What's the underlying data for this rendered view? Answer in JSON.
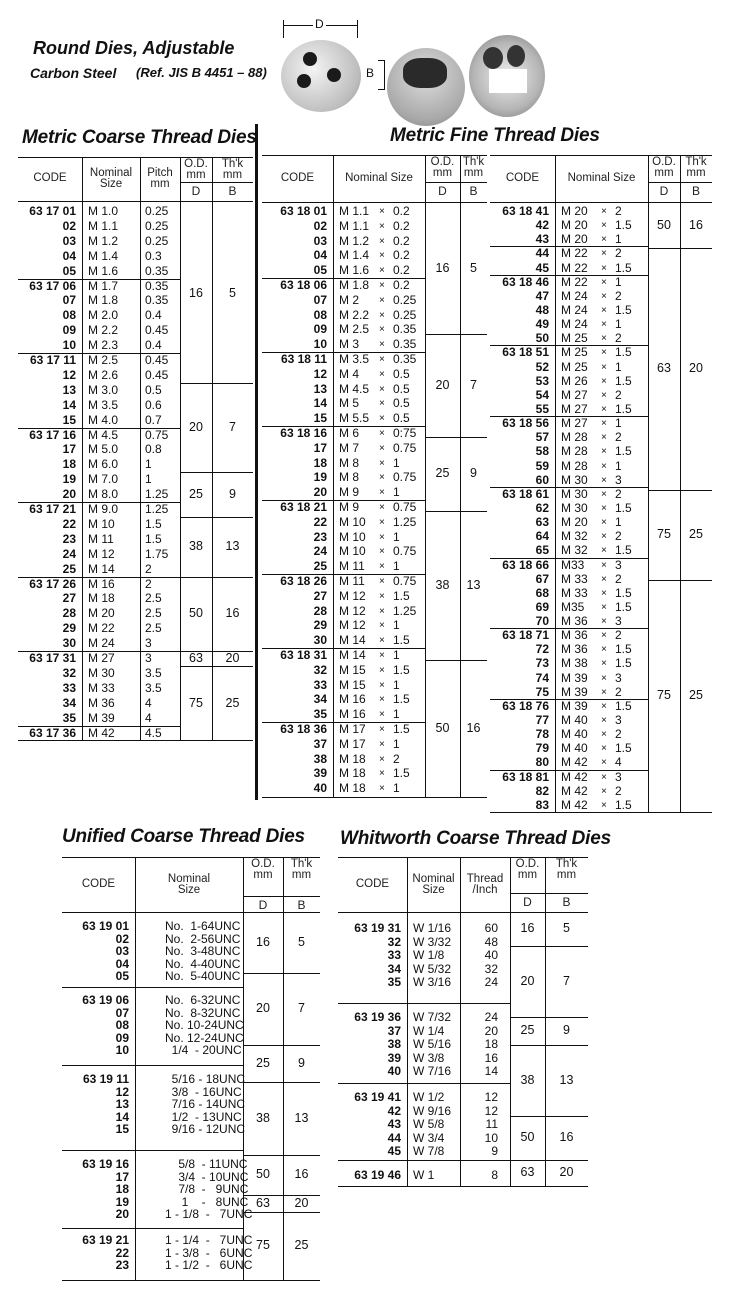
{
  "header": {
    "title": "Round Dies, Adjustable",
    "subtitle": "Carbon Steel",
    "reference": "(Ref. JIS B 4451 – 88)",
    "dimension_d": "D",
    "dimension_b": "B"
  },
  "tables": {
    "metric_coarse": {
      "title": "Metric Coarse Thread Dies",
      "columns": [
        "CODE",
        "Nominal\nSize",
        "Pitch\nmm",
        "O.D.\nmm",
        "Th'k\nmm"
      ],
      "sub_columns": [
        "D",
        "B"
      ],
      "groups": [
        [
          [
            "63 17 01",
            "M 1.0",
            "0.25"
          ],
          [
            "02",
            "M 1.1",
            "0.25"
          ],
          [
            "03",
            "M 1.2",
            "0.25"
          ],
          [
            "04",
            "M 1.4",
            "0.3"
          ],
          [
            "05",
            "M 1.6",
            "0.35"
          ]
        ],
        [
          [
            "63 17 06",
            "M 1.7",
            "0.35"
          ],
          [
            "07",
            "M 1.8",
            "0.35"
          ],
          [
            "08",
            "M 2.0",
            "0.4"
          ],
          [
            "09",
            "M 2.2",
            "0.45"
          ],
          [
            "10",
            "M 2.3",
            "0.4"
          ]
        ],
        [
          [
            "63 17 11",
            "M 2.5",
            "0.45"
          ],
          [
            "12",
            "M 2.6",
            "0.45"
          ],
          [
            "13",
            "M 3.0",
            "0.5"
          ],
          [
            "14",
            "M 3.5",
            "0.6"
          ],
          [
            "15",
            "M 4.0",
            "0.7"
          ]
        ],
        [
          [
            "63 17 16",
            "M 4.5",
            "0.75"
          ],
          [
            "17",
            "M 5.0",
            "0.8"
          ],
          [
            "18",
            "M 6.0",
            "1"
          ],
          [
            "19",
            "M 7.0",
            "1"
          ],
          [
            "20",
            "M 8.0",
            "1.25"
          ]
        ],
        [
          [
            "63 17 21",
            "M 9.0",
            "1.25"
          ],
          [
            "22",
            "M 10",
            "1.5"
          ],
          [
            "23",
            "M 11",
            "1.5"
          ],
          [
            "24",
            "M 12",
            "1.75"
          ],
          [
            "25",
            "M 14",
            "2"
          ]
        ],
        [
          [
            "63 17 26",
            "M 16",
            "2"
          ],
          [
            "27",
            "M 18",
            "2.5"
          ],
          [
            "28",
            "M 20",
            "2.5"
          ],
          [
            "29",
            "M 22",
            "2.5"
          ],
          [
            "30",
            "M 24",
            "3"
          ]
        ],
        [
          [
            "63 17 31",
            "M 27",
            "3"
          ],
          [
            "32",
            "M 30",
            "3.5"
          ],
          [
            "33",
            "M 33",
            "3.5"
          ],
          [
            "34",
            "M 36",
            "4"
          ],
          [
            "35",
            "M 39",
            "4"
          ]
        ],
        [
          [
            "63 17 36",
            "M 42",
            "4.5"
          ]
        ]
      ],
      "spans": [
        [
          "16",
          "5"
        ],
        [
          "20",
          "7"
        ],
        [
          "25",
          "9"
        ],
        [
          "38",
          "13"
        ],
        [
          "50",
          "16"
        ],
        [
          "63",
          "20"
        ],
        [
          "75",
          "25"
        ]
      ]
    },
    "metric_fine_left": {
      "title": "Metric Fine Thread Dies",
      "columns": [
        "CODE",
        "Nominal Size",
        "O.D.\nmm",
        "Th'k\nmm"
      ],
      "sub_columns": [
        "D",
        "B"
      ],
      "groups": [
        [
          [
            "63 18 01",
            "M 1.1 × 0.2"
          ],
          [
            "02",
            "M 1.1 × 0.2"
          ],
          [
            "03",
            "M 1.2 × 0.2"
          ],
          [
            "04",
            "M 1.4 × 0.2"
          ],
          [
            "05",
            "M 1.6 × 0.2"
          ]
        ],
        [
          [
            "63 18 06",
            "M 1.8 × 0.2"
          ],
          [
            "07",
            "M 2 × 0.25"
          ],
          [
            "08",
            "M 2.2 × 0.25"
          ],
          [
            "09",
            "M 2.5 × 0.35"
          ],
          [
            "10",
            "M 3 × 0.35"
          ]
        ],
        [
          [
            "63 18 11",
            "M 3.5 × 0.35"
          ],
          [
            "12",
            "M 4 × 0.5"
          ],
          [
            "13",
            "M 4.5 × 0.5"
          ],
          [
            "14",
            "M 5 × 0.5"
          ],
          [
            "15",
            "M 5.5 × 0.5"
          ]
        ],
        [
          [
            "63 18 16",
            "M 6 × 0:75"
          ],
          [
            "17",
            "M 7 × 0.75"
          ],
          [
            "18",
            "M 8 × 1"
          ],
          [
            "19",
            "M 8 × 0.75"
          ],
          [
            "20",
            "M 9 × 1"
          ]
        ],
        [
          [
            "63 18 21",
            "M 9 × 0.75"
          ],
          [
            "22",
            "M 10 × 1.25"
          ],
          [
            "23",
            "M 10 × 1"
          ],
          [
            "24",
            "M 10 × 0.75"
          ],
          [
            "25",
            "M 11 × 1"
          ]
        ],
        [
          [
            "63 18 26",
            "M 11 × 0.75"
          ],
          [
            "27",
            "M 12 × 1.5"
          ],
          [
            "28",
            "M 12 × 1.25"
          ],
          [
            "29",
            "M 12 × 1"
          ],
          [
            "30",
            "M 14 × 1.5"
          ]
        ],
        [
          [
            "63 18 31",
            "M 14 × 1"
          ],
          [
            "32",
            "M 15 × 1.5"
          ],
          [
            "33",
            "M 15 × 1"
          ],
          [
            "34",
            "M 16 × 1.5"
          ],
          [
            "35",
            "M 16 × 1"
          ]
        ],
        [
          [
            "63 18 36",
            "M 17 × 1.5"
          ],
          [
            "37",
            "M 17 × 1"
          ],
          [
            "38",
            "M 18 × 2"
          ],
          [
            "39",
            "M 18 × 1.5"
          ],
          [
            "40",
            "M 18 × 1"
          ]
        ]
      ],
      "spans": [
        [
          "16",
          "5"
        ],
        [
          "20",
          "7"
        ],
        [
          "25",
          "9"
        ],
        [
          "38",
          "13"
        ],
        [
          "50",
          "16"
        ]
      ]
    },
    "metric_fine_right": {
      "columns": [
        "CODE",
        "Nominal Size",
        "O.D.\nmm",
        "Th'k\nmm"
      ],
      "sub_columns": [
        "D",
        "B"
      ],
      "groups": [
        [
          [
            "63 18 41",
            "M 20 × 2"
          ],
          [
            "42",
            "M 20 × 1.5"
          ],
          [
            "43",
            "M 20 × 1"
          ]
        ],
        [
          [
            "44",
            "M 22 × 2"
          ],
          [
            "45",
            "M 22 × 1.5"
          ]
        ],
        [
          [
            "63 18 46",
            "M 22 × 1"
          ],
          [
            "47",
            "M 24 × 2"
          ],
          [
            "48",
            "M 24 × 1.5"
          ],
          [
            "49",
            "M 24 × 1"
          ],
          [
            "50",
            "M 25 × 2"
          ]
        ],
        [
          [
            "63 18 51",
            "M 25 × 1.5"
          ],
          [
            "52",
            "M 25 × 1"
          ],
          [
            "53",
            "M 26 × 1.5"
          ],
          [
            "54",
            "M 27 × 2"
          ],
          [
            "55",
            "M 27 × 1.5"
          ]
        ],
        [
          [
            "63 18 56",
            "M 27 × 1"
          ],
          [
            "57",
            "M 28 × 2"
          ],
          [
            "58",
            "M 28 × 1.5"
          ],
          [
            "59",
            "M 28 × 1"
          ],
          [
            "60",
            "M 30 × 3"
          ]
        ],
        [
          [
            "63 18 61",
            "M 30 × 2"
          ],
          [
            "62",
            "M 30 × 1.5"
          ],
          [
            "63",
            "M 20 × 1"
          ],
          [
            "64",
            "M 32 × 2"
          ],
          [
            "65",
            "M 32 × 1.5"
          ]
        ],
        [
          [
            "63 18 66",
            "M33 × 3"
          ],
          [
            "67",
            "M 33 × 2"
          ],
          [
            "68",
            "M 33 × 1.5"
          ],
          [
            "69",
            "M35 × 1.5"
          ],
          [
            "70",
            "M 36 × 3"
          ]
        ],
        [
          [
            "63 18 71",
            "M 36 × 2"
          ],
          [
            "72",
            "M 36 × 1.5"
          ],
          [
            "73",
            "M 38 × 1.5"
          ],
          [
            "74",
            "M 39 × 3"
          ],
          [
            "75",
            "M 39 × 2"
          ]
        ],
        [
          [
            "63 18 76",
            "M 39 × 1.5"
          ],
          [
            "77",
            "M 40 × 3"
          ],
          [
            "78",
            "M 40 × 2"
          ],
          [
            "79",
            "M 40 × 1.5"
          ],
          [
            "80",
            "M 42 × 4"
          ]
        ],
        [
          [
            "63 18 81",
            "M 42 × 3"
          ],
          [
            "82",
            "M 42 × 2"
          ],
          [
            "83",
            "M 42 × 1.5"
          ]
        ]
      ],
      "spans": [
        [
          "50",
          "16"
        ],
        [
          "63",
          "20"
        ],
        [
          "75",
          "25"
        ],
        [
          "75",
          "25"
        ]
      ]
    },
    "unified_coarse": {
      "title": "Unified Coarse Thread Dies",
      "columns": [
        "CODE",
        "Nominal\nSize",
        "O.D.\nmm",
        "Th'k\nmm"
      ],
      "sub_columns": [
        "D",
        "B"
      ],
      "groups": [
        [
          [
            "63 19 01",
            "No.  1-64UNC"
          ],
          [
            "02",
            "No.  2-56UNC"
          ],
          [
            "03",
            "No.  3-48UNC"
          ],
          [
            "04",
            "No.  4-40UNC"
          ],
          [
            "05",
            "No.  5-40UNC"
          ]
        ],
        [
          [
            "63 19 06",
            "No.  6-32UNC"
          ],
          [
            "07",
            "No.  8-32UNC"
          ],
          [
            "08",
            "No. 10-24UNC"
          ],
          [
            "09",
            "No. 12-24UNC"
          ],
          [
            "10",
            "  1/4  - 20UNC"
          ]
        ],
        [
          [
            "63 19 11",
            "  5/16 - 18UNC"
          ],
          [
            "12",
            "  3/8  - 16UNC"
          ],
          [
            "13",
            "  7/16 - 14UNC"
          ],
          [
            "14",
            "  1/2  - 13UNC"
          ],
          [
            "15",
            "  9/16 - 12UNC"
          ]
        ],
        [
          [
            "63 19 16",
            "    5/8  - 11UNC"
          ],
          [
            "17",
            "    3/4  - 10UNC"
          ],
          [
            "18",
            "    7/8  -   9UNC"
          ],
          [
            "19",
            "     1    -   8UNC"
          ],
          [
            "20",
            "1 - 1/8  -   7UNC"
          ]
        ],
        [
          [
            "63 19 21",
            "1 - 1/4  -   7UNC"
          ],
          [
            "22",
            "1 - 3/8  -   6UNC"
          ],
          [
            "23",
            "1 - 1/2  -   6UNC"
          ]
        ]
      ],
      "spans": [
        [
          "16",
          "5"
        ],
        [
          "20",
          "7"
        ],
        [
          "25",
          "9"
        ],
        [
          "38",
          "13"
        ],
        [
          "50",
          "16"
        ],
        [
          "63",
          "20"
        ],
        [
          "75",
          "25"
        ]
      ]
    },
    "whitworth_coarse": {
      "title": "Whitworth Coarse Thread Dies",
      "columns": [
        "CODE",
        "Nominal\nSize",
        "Thread\n/Inch",
        "O.D.\nmm",
        "Th'k\nmm"
      ],
      "sub_columns": [
        "D",
        "B"
      ],
      "groups": [
        [
          [
            "63 19 31",
            "W 1/16",
            "60"
          ],
          [
            "32",
            "W 3/32",
            "48"
          ],
          [
            "33",
            "W 1/8",
            "40"
          ],
          [
            "34",
            "W 5/32",
            "32"
          ],
          [
            "35",
            "W 3/16",
            "24"
          ]
        ],
        [
          [
            "63 19 36",
            "W 7/32",
            "24"
          ],
          [
            "37",
            "W 1/4",
            "20"
          ],
          [
            "38",
            "W 5/16",
            "18"
          ],
          [
            "39",
            "W 3/8",
            "16"
          ],
          [
            "40",
            "W 7/16",
            "14"
          ]
        ],
        [
          [
            "63 19 41",
            "W 1/2",
            "12"
          ],
          [
            "42",
            "W 9/16",
            "12"
          ],
          [
            "43",
            "W 5/8",
            "11"
          ],
          [
            "44",
            "W 3/4",
            "10"
          ],
          [
            "45",
            "W 7/8",
            "9"
          ]
        ],
        [
          [
            "63 19 46",
            "W   1",
            "8"
          ]
        ]
      ],
      "spans": [
        [
          "16",
          "5"
        ],
        [
          "20",
          "7"
        ],
        [
          "25",
          "9"
        ],
        [
          "38",
          "13"
        ],
        [
          "50",
          "16"
        ],
        [
          "63",
          "20"
        ]
      ]
    }
  }
}
